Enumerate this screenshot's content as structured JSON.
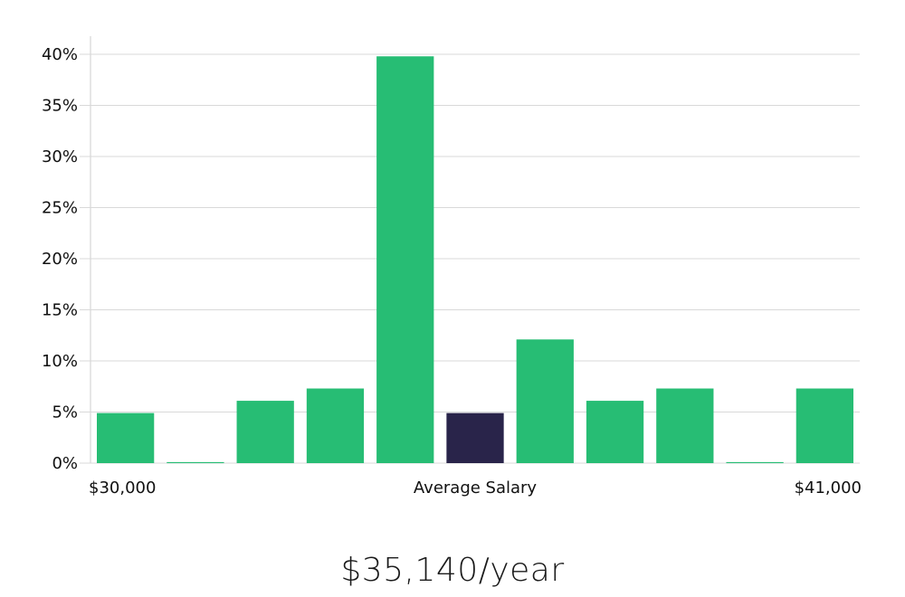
{
  "chart_data": {
    "type": "bar",
    "title": "",
    "xlabel": "Average Salary",
    "ylabel": "",
    "x_range_labels": [
      "$30,000",
      "$41,000"
    ],
    "ylim": [
      0,
      40
    ],
    "y_ticks": [
      "0%",
      "5%",
      "10%",
      "15%",
      "20%",
      "25%",
      "30%",
      "35%",
      "40%"
    ],
    "values": [
      4.9,
      0.1,
      6.1,
      7.3,
      39.8,
      4.9,
      12.1,
      6.1,
      7.3,
      0.1,
      7.3
    ],
    "highlight_index": 5,
    "grid": true,
    "colors": {
      "bar": "#27bd74",
      "highlight": "#29244a",
      "grid": "#d9d9d9",
      "axis": "#cccccc"
    }
  },
  "summary": {
    "salary_text": "$35,140/year"
  }
}
